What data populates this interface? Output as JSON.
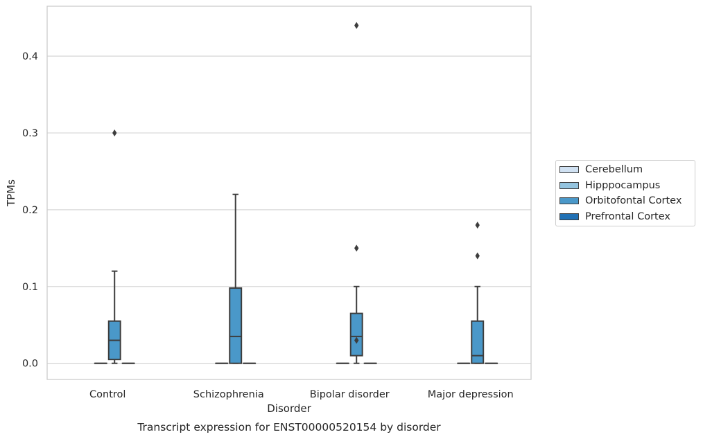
{
  "chart_data": {
    "type": "boxplot",
    "title": "",
    "caption": "Transcript expression for ENST00000520154 by disorder",
    "xlabel": "Disorder",
    "ylabel": "TPMs",
    "ylim": [
      -0.021,
      0.465
    ],
    "yticks": [
      0.0,
      0.1,
      0.2,
      0.3,
      0.4
    ],
    "ytick_labels": [
      "0.0",
      "0.1",
      "0.2",
      "0.3",
      "0.4"
    ],
    "grid": "horizontal",
    "legend_position": "right",
    "categories": [
      "Control",
      "Schizophrenia",
      "Bipolar disorder",
      "Major depression"
    ],
    "series": [
      {
        "name": "Cerebellum",
        "color": "#d0e1f2",
        "boxes": [
          null,
          null,
          null,
          null
        ]
      },
      {
        "name": "Hipppocampus",
        "color": "#94c4df",
        "boxes": [
          {
            "whislo": 0.0,
            "q1": 0.0,
            "med": 0.0,
            "q3": 0.0,
            "whishi": 0.0,
            "fliers": []
          },
          {
            "whislo": 0.0,
            "q1": 0.0,
            "med": 0.0,
            "q3": 0.0,
            "whishi": 0.0,
            "fliers": []
          },
          {
            "whislo": 0.0,
            "q1": 0.0,
            "med": 0.0,
            "q3": 0.0,
            "whishi": 0.0,
            "fliers": []
          },
          {
            "whislo": 0.0,
            "q1": 0.0,
            "med": 0.0,
            "q3": 0.0,
            "whishi": 0.0,
            "fliers": []
          }
        ]
      },
      {
        "name": "Orbitofontal Cortex",
        "color": "#4a98c9",
        "boxes": [
          {
            "whislo": 0.0,
            "q1": 0.005,
            "med": 0.03,
            "q3": 0.055,
            "whishi": 0.12,
            "fliers": [
              0.3
            ]
          },
          {
            "whislo": 0.0,
            "q1": 0.0,
            "med": 0.035,
            "q3": 0.098,
            "whishi": 0.22,
            "fliers": []
          },
          {
            "whislo": 0.0,
            "q1": 0.01,
            "med": 0.035,
            "q3": 0.065,
            "whishi": 0.1,
            "fliers": [
              0.03,
              0.15,
              0.44
            ]
          },
          {
            "whislo": 0.0,
            "q1": 0.0,
            "med": 0.01,
            "q3": 0.055,
            "whishi": 0.1,
            "fliers": [
              0.14,
              0.18
            ]
          }
        ]
      },
      {
        "name": "Prefrontal Cortex",
        "color": "#2171b5",
        "boxes": [
          {
            "whislo": 0.0,
            "q1": 0.0,
            "med": 0.0,
            "q3": 0.0,
            "whishi": 0.0,
            "fliers": []
          },
          {
            "whislo": 0.0,
            "q1": 0.0,
            "med": 0.0,
            "q3": 0.0,
            "whishi": 0.0,
            "fliers": []
          },
          {
            "whislo": 0.0,
            "q1": 0.0,
            "med": 0.0,
            "q3": 0.0,
            "whishi": 0.0,
            "fliers": []
          },
          {
            "whislo": 0.0,
            "q1": 0.0,
            "med": 0.0,
            "q3": 0.0,
            "whishi": 0.0,
            "fliers": []
          }
        ]
      }
    ],
    "legend": [
      "Cerebellum",
      "Hipppocampus",
      "Orbitofontal Cortex",
      "Prefrontal Cortex"
    ]
  }
}
